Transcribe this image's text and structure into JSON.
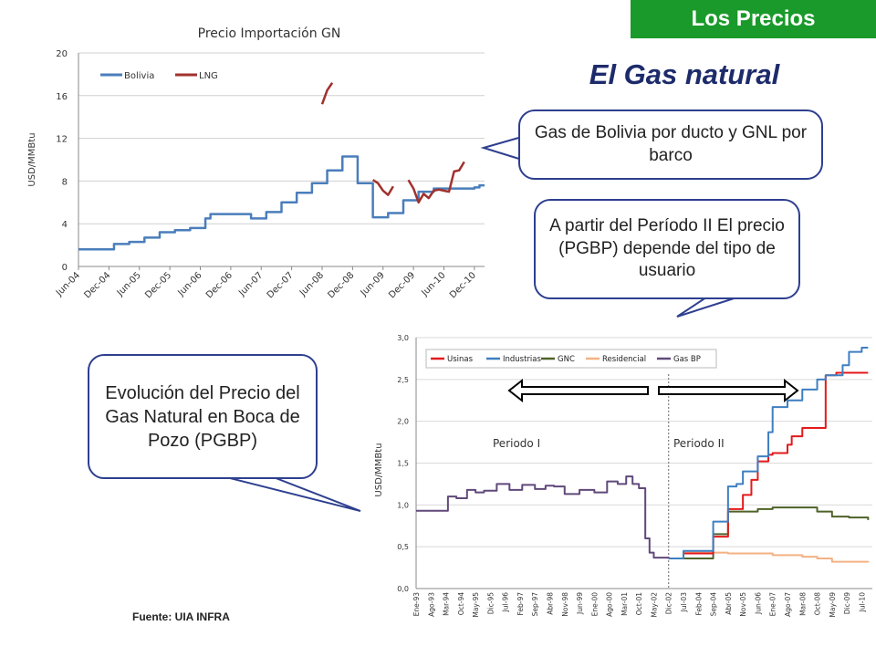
{
  "header": {
    "badge": "Los Precios",
    "title": "El Gas natural"
  },
  "callouts": {
    "top": "Gas de Bolivia por ducto y GNL  por barco",
    "middle": "A partir del Período II El precio (PGBP) depende del tipo de usuario",
    "left": "Evolución del Precio del Gas Natural en Boca de Pozo (PGBP)"
  },
  "source": "Fuente: UIA  INFRA",
  "colors": {
    "badge": "#1a9a2a",
    "title": "#1d2b6b",
    "bubble_border": "#2e3f8f"
  },
  "chart_data": [
    {
      "type": "line",
      "title": "Precio Importación GN",
      "ylabel": "USD/MMBtu",
      "ylim": [
        0,
        20
      ],
      "yticks": [
        0,
        4,
        8,
        12,
        16,
        20
      ],
      "x_tick_labels": [
        "Jun-04",
        "Dec-04",
        "Jun-05",
        "Dec-05",
        "Jun-06",
        "Dec-06",
        "Jun-07",
        "Dec-07",
        "Jun-08",
        "Dec-08",
        "Jun-09",
        "Dec-09",
        "Jun-10",
        "Dec-10"
      ],
      "legend_position": "top-left",
      "grid": true,
      "series": [
        {
          "name": "Bolivia",
          "color": "#4a7ebb",
          "points": [
            [
              "Jun-04",
              1.6
            ],
            [
              "Dec-04",
              1.6
            ],
            [
              "Jan-05",
              2.1
            ],
            [
              "Mar-05",
              2.1
            ],
            [
              "Apr-05",
              2.3
            ],
            [
              "Jun-05",
              2.3
            ],
            [
              "Jul-05",
              2.7
            ],
            [
              "Sep-05",
              2.7
            ],
            [
              "Oct-05",
              3.2
            ],
            [
              "Dec-05",
              3.2
            ],
            [
              "Jan-06",
              3.4
            ],
            [
              "Mar-06",
              3.4
            ],
            [
              "Apr-06",
              3.6
            ],
            [
              "Jun-06",
              3.6
            ],
            [
              "Jul-06",
              4.5
            ],
            [
              "Aug-06",
              4.9
            ],
            [
              "Dec-06",
              4.9
            ],
            [
              "Mar-07",
              4.9
            ],
            [
              "Apr-07",
              4.5
            ],
            [
              "Jun-07",
              4.5
            ],
            [
              "Jul-07",
              5.1
            ],
            [
              "Sep-07",
              5.1
            ],
            [
              "Oct-07",
              6.0
            ],
            [
              "Dec-07",
              6.0
            ],
            [
              "Jan-08",
              6.9
            ],
            [
              "Mar-08",
              6.9
            ],
            [
              "Apr-08",
              7.8
            ],
            [
              "Jun-08",
              7.8
            ],
            [
              "Jul-08",
              9.0
            ],
            [
              "Sep-08",
              9.0
            ],
            [
              "Oct-08",
              10.3
            ],
            [
              "Dec-08",
              10.3
            ],
            [
              "Jan-09",
              7.8
            ],
            [
              "Mar-09",
              7.8
            ],
            [
              "Apr-09",
              4.6
            ],
            [
              "Jun-09",
              4.6
            ],
            [
              "Jul-09",
              5.0
            ],
            [
              "Sep-09",
              5.0
            ],
            [
              "Oct-09",
              6.2
            ],
            [
              "Dec-09",
              6.2
            ],
            [
              "Jan-10",
              7.0
            ],
            [
              "Mar-10",
              7.0
            ],
            [
              "Apr-10",
              7.3
            ],
            [
              "Dec-10",
              7.4
            ],
            [
              "Jan-11",
              7.6
            ],
            [
              "Feb-11",
              7.6
            ]
          ]
        },
        {
          "name": "LNG",
          "color": "#a0312e",
          "segments": [
            [
              [
                "Jun-08",
                15.2
              ],
              [
                "Jul-08",
                16.5
              ],
              [
                "Aug-08",
                17.2
              ]
            ],
            [
              [
                "Apr-09",
                8.1
              ],
              [
                "May-09",
                7.8
              ],
              [
                "Jun-09",
                7.1
              ],
              [
                "Jul-09",
                6.7
              ],
              [
                "Aug-09",
                7.5
              ]
            ],
            [
              [
                "Nov-09",
                8.1
              ],
              [
                "Dec-09",
                7.3
              ],
              [
                "Jan-10",
                6.0
              ],
              [
                "Feb-10",
                6.8
              ],
              [
                "Mar-10",
                6.4
              ],
              [
                "Apr-10",
                7.1
              ],
              [
                "May-10",
                7.2
              ],
              [
                "Jul-10",
                7.0
              ],
              [
                "Aug-10",
                8.9
              ],
              [
                "Sep-10",
                9.0
              ],
              [
                "Oct-10",
                9.8
              ]
            ]
          ]
        }
      ]
    },
    {
      "type": "line",
      "ylabel": "USD/MMBtu",
      "ylim": [
        0,
        3.0
      ],
      "yticks": [
        "0,0",
        "0,5",
        "1,0",
        "1,5",
        "2,0",
        "2,5",
        "3,0"
      ],
      "x_tick_labels": [
        "Ene-93",
        "Ago-93",
        "Mar-94",
        "Oct-94",
        "May-95",
        "Dic-95",
        "Jul-96",
        "Feb-97",
        "Sep-97",
        "Abr-98",
        "Nov-98",
        "Jun-99",
        "Ene-00",
        "Ago-00",
        "Mar-01",
        "Oct-01",
        "May-02",
        "Dic-02",
        "Jul-03",
        "Feb-04",
        "Sep-04",
        "Abr-05",
        "Nov-05",
        "Jun-06",
        "Ene-07",
        "Ago-07",
        "Mar-08",
        "Oct-08",
        "May-09",
        "Dic-09",
        "Jul-10"
      ],
      "legend_position": "top",
      "grid": true,
      "annotations": [
        "Periodo I",
        "Periodo II"
      ],
      "period_divider": "Dic-02",
      "series": [
        {
          "name": "Usinas",
          "color": "#e31a1c",
          "points": [
            [
              "Dic-02",
              0.36
            ],
            [
              "Jul-03",
              0.42
            ],
            [
              "Abr-04",
              0.42
            ],
            [
              "Sep-04",
              0.62
            ],
            [
              "Abr-05",
              0.95
            ],
            [
              "Ago-05",
              0.95
            ],
            [
              "Nov-05",
              1.12
            ],
            [
              "Mar-06",
              1.3
            ],
            [
              "Jun-06",
              1.52
            ],
            [
              "Nov-06",
              1.6
            ],
            [
              "Ene-07",
              1.62
            ],
            [
              "Ago-07",
              1.72
            ],
            [
              "Oct-07",
              1.82
            ],
            [
              "Mar-08",
              1.92
            ],
            [
              "Ago-08",
              1.92
            ],
            [
              "Feb-09",
              2.55
            ],
            [
              "Jul-09",
              2.58
            ],
            [
              "Oct-10",
              2.58
            ]
          ]
        },
        {
          "name": "Industrias",
          "color": "#3e7fc1",
          "points": [
            [
              "Dic-02",
              0.36
            ],
            [
              "Jul-03",
              0.45
            ],
            [
              "Sep-04",
              0.8
            ],
            [
              "Abr-05",
              1.22
            ],
            [
              "Ago-05",
              1.25
            ],
            [
              "Nov-05",
              1.4
            ],
            [
              "Jun-06",
              1.58
            ],
            [
              "Nov-06",
              1.87
            ],
            [
              "Ene-07",
              2.17
            ],
            [
              "Ago-07",
              2.25
            ],
            [
              "Mar-08",
              2.38
            ],
            [
              "Oct-08",
              2.5
            ],
            [
              "Feb-09",
              2.55
            ],
            [
              "Oct-09",
              2.67
            ],
            [
              "Ene-10",
              2.83
            ],
            [
              "Jul-10",
              2.88
            ],
            [
              "Oct-10",
              2.88
            ]
          ]
        },
        {
          "name": "GNC",
          "color": "#4f6228",
          "points": [
            [
              "Dic-02",
              0.36
            ],
            [
              "Sep-04",
              0.65
            ],
            [
              "Abr-05",
              0.92
            ],
            [
              "Nov-05",
              0.92
            ],
            [
              "Jun-06",
              0.95
            ],
            [
              "Ene-07",
              0.97
            ],
            [
              "Mar-08",
              0.97
            ],
            [
              "Oct-08",
              0.92
            ],
            [
              "May-09",
              0.86
            ],
            [
              "Ene-10",
              0.85
            ],
            [
              "Oct-10",
              0.82
            ]
          ]
        },
        {
          "name": "Residencial",
          "color": "#f4b183",
          "points": [
            [
              "Dic-02",
              0.36
            ],
            [
              "Jul-03",
              0.43
            ],
            [
              "Abr-05",
              0.42
            ],
            [
              "Ene-07",
              0.4
            ],
            [
              "Mar-08",
              0.38
            ],
            [
              "Oct-08",
              0.36
            ],
            [
              "May-09",
              0.32
            ],
            [
              "Oct-10",
              0.31
            ]
          ]
        },
        {
          "name": "Gas BP",
          "color": "#60497a",
          "points": [
            [
              "Ene-93",
              0.93
            ],
            [
              "Mar-94",
              0.93
            ],
            [
              "Abr-94",
              1.1
            ],
            [
              "Ago-94",
              1.08
            ],
            [
              "Ene-95",
              1.18
            ],
            [
              "May-95",
              1.15
            ],
            [
              "Sep-95",
              1.17
            ],
            [
              "Mar-96",
              1.25
            ],
            [
              "Sep-96",
              1.18
            ],
            [
              "Mar-97",
              1.24
            ],
            [
              "Sep-97",
              1.19
            ],
            [
              "Feb-98",
              1.23
            ],
            [
              "Jun-98",
              1.22
            ],
            [
              "Nov-98",
              1.13
            ],
            [
              "Jun-99",
              1.18
            ],
            [
              "Ene-00",
              1.15
            ],
            [
              "Jul-00",
              1.28
            ],
            [
              "Dic-00",
              1.25
            ],
            [
              "Abr-01",
              1.34
            ],
            [
              "Jul-01",
              1.25
            ],
            [
              "Oct-01",
              1.2
            ],
            [
              "Ene-02",
              0.6
            ],
            [
              "Mar-02",
              0.43
            ],
            [
              "May-02",
              0.37
            ],
            [
              "Dic-02",
              0.36
            ]
          ]
        }
      ]
    }
  ]
}
